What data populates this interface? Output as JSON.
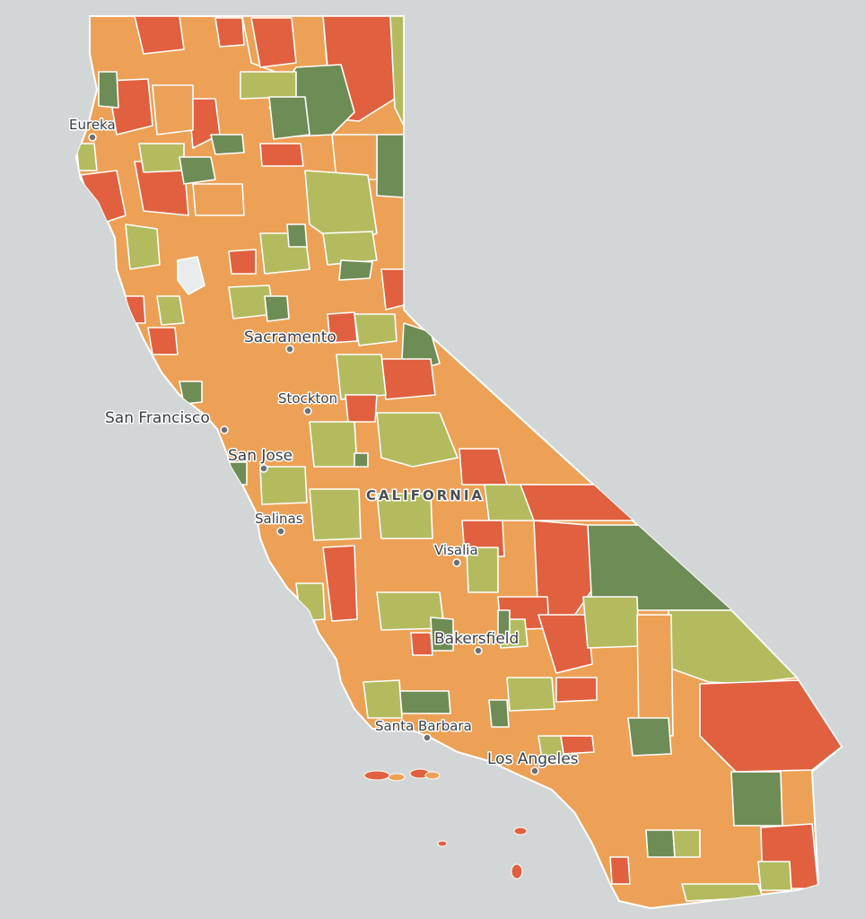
{
  "map": {
    "state_label": "CALIFORNIA",
    "palette": {
      "red": "#e0603f",
      "orange": "#eda156",
      "lightgreen": "#b4bb5f",
      "green": "#6e8c55",
      "water": "#d3d6d7",
      "lake": "#e8ecec"
    },
    "cities": [
      {
        "name": "Eureka",
        "size": "normal"
      },
      {
        "name": "Sacramento",
        "size": "big"
      },
      {
        "name": "Stockton",
        "size": "normal"
      },
      {
        "name": "San Francisco",
        "size": "big"
      },
      {
        "name": "San Jose",
        "size": "big"
      },
      {
        "name": "Salinas",
        "size": "normal"
      },
      {
        "name": "Visalia",
        "size": "normal"
      },
      {
        "name": "Bakersfield",
        "size": "big"
      },
      {
        "name": "Santa Barbara",
        "size": "normal"
      },
      {
        "name": "Los Angeles",
        "size": "big"
      }
    ]
  }
}
